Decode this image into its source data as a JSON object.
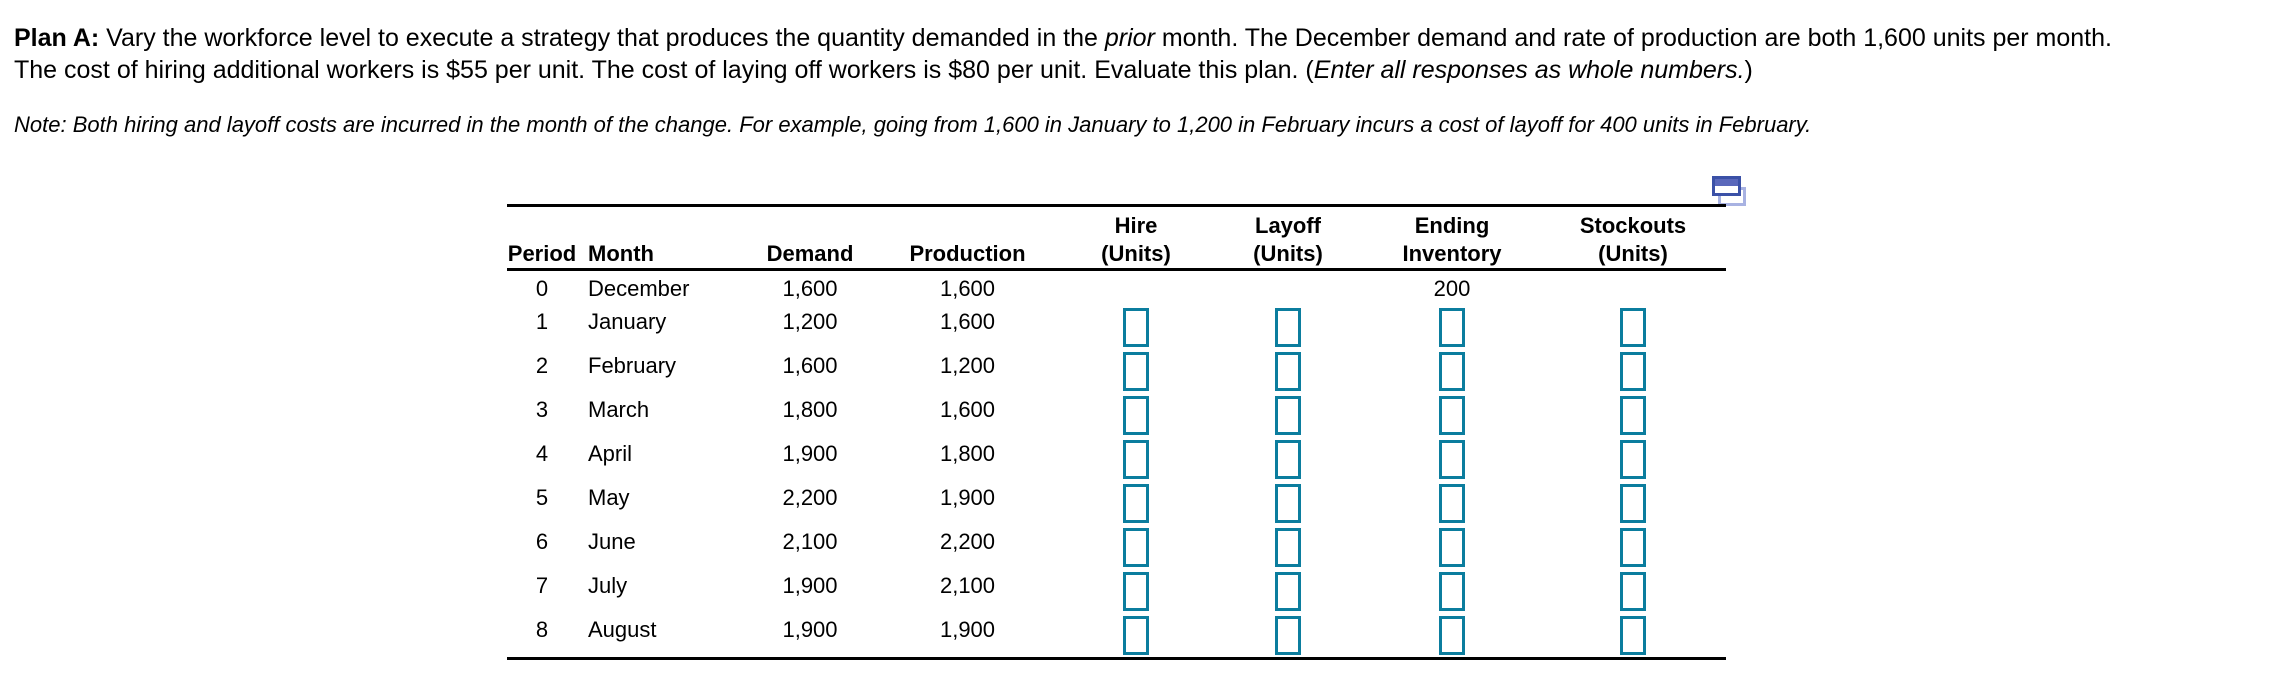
{
  "intro": {
    "line1": {
      "bold": "Plan A:",
      "text_a": " Vary the workforce level to execute a strategy that produces the quantity demanded in the ",
      "italic": "prior",
      "text_b": " month. The December demand and rate of production are both 1,600 units per month."
    },
    "line2": {
      "text_a": "The cost of hiring additional workers is $55 per unit. The cost of laying off workers is $80 per unit. Evaluate this plan. (",
      "italic": "Enter all responses as whole numbers.",
      "text_b": ")"
    },
    "note": "Note: Both hiring and layoff costs are incurred in the month of the change. For example, going from 1,600 in January to 1,200 in February incurs a cost of layoff for 400 units in February."
  },
  "icons": {
    "table_action": "new-window-icon"
  },
  "table": {
    "headers": {
      "period": "Period",
      "month": "Month",
      "demand": "Demand",
      "production": "Production",
      "hire_1": "Hire",
      "hire_2": "(Units)",
      "layoff_1": "Layoff",
      "layoff_2": "(Units)",
      "ending_1": "Ending",
      "ending_2": "Inventory",
      "stockouts_1": "Stockouts",
      "stockouts_2": "(Units)"
    },
    "rows": [
      {
        "period": "0",
        "month": "December",
        "demand": "1,600",
        "production": "1,600",
        "ending_inventory": "200",
        "inputs": false
      },
      {
        "period": "1",
        "month": "January",
        "demand": "1,200",
        "production": "1,600",
        "inputs": true,
        "hire": "",
        "layoff": "",
        "ending_inventory_input": "",
        "stockouts": ""
      },
      {
        "period": "2",
        "month": "February",
        "demand": "1,600",
        "production": "1,200",
        "inputs": true,
        "hire": "",
        "layoff": "",
        "ending_inventory_input": "",
        "stockouts": ""
      },
      {
        "period": "3",
        "month": "March",
        "demand": "1,800",
        "production": "1,600",
        "inputs": true,
        "hire": "",
        "layoff": "",
        "ending_inventory_input": "",
        "stockouts": ""
      },
      {
        "period": "4",
        "month": "April",
        "demand": "1,900",
        "production": "1,800",
        "inputs": true,
        "hire": "",
        "layoff": "",
        "ending_inventory_input": "",
        "stockouts": ""
      },
      {
        "period": "5",
        "month": "May",
        "demand": "2,200",
        "production": "1,900",
        "inputs": true,
        "hire": "",
        "layoff": "",
        "ending_inventory_input": "",
        "stockouts": ""
      },
      {
        "period": "6",
        "month": "June",
        "demand": "2,100",
        "production": "2,200",
        "inputs": true,
        "hire": "",
        "layoff": "",
        "ending_inventory_input": "",
        "stockouts": ""
      },
      {
        "period": "7",
        "month": "July",
        "demand": "1,900",
        "production": "2,100",
        "inputs": true,
        "hire": "",
        "layoff": "",
        "ending_inventory_input": "",
        "stockouts": ""
      },
      {
        "period": "8",
        "month": "August",
        "demand": "1,900",
        "production": "1,900",
        "inputs": true,
        "hire": "",
        "layoff": "",
        "ending_inventory_input": "",
        "stockouts": ""
      }
    ]
  },
  "colors": {
    "input_box": "#0b7d9e",
    "icon_front_border": "#3b51a7",
    "icon_front_fill": "#5a68bb",
    "icon_back_border": "#a8b2e2",
    "table_line": "#000000",
    "text": "#000000",
    "background": "#ffffff"
  }
}
